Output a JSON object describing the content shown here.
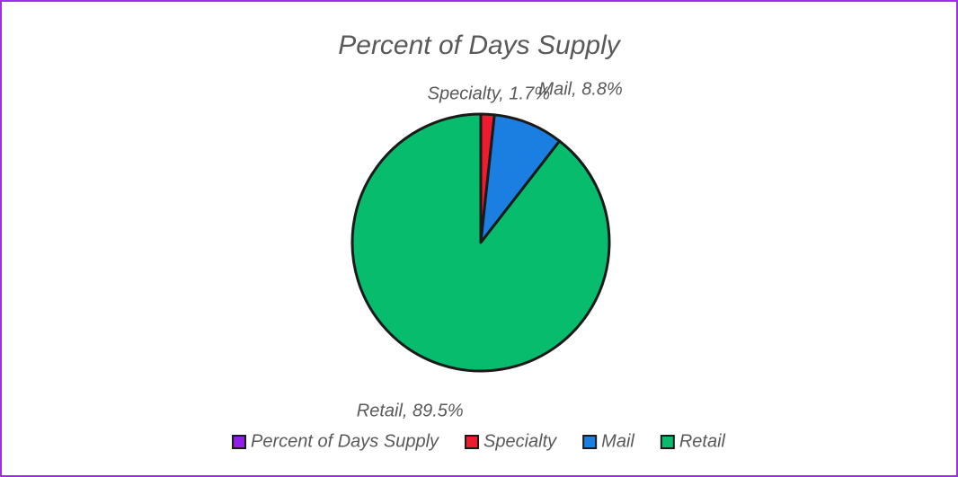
{
  "chart_data": {
    "type": "pie",
    "title": "Percent of Days Supply",
    "categories": [
      "Specialty",
      "Mail",
      "Retail"
    ],
    "colors": [
      "#ee1c2e",
      "#1a7fe0",
      "#07bc6c"
    ],
    "series": [
      {
        "name": "Percent of Days Supply",
        "color": "#8f1ee6",
        "values": [
          1.7,
          8.8,
          89.5
        ],
        "value_labels": [
          "Specialty, 1.7%",
          "Mail, 8.8%",
          "Retail, 89.5%"
        ]
      }
    ],
    "legend": "bottom"
  }
}
